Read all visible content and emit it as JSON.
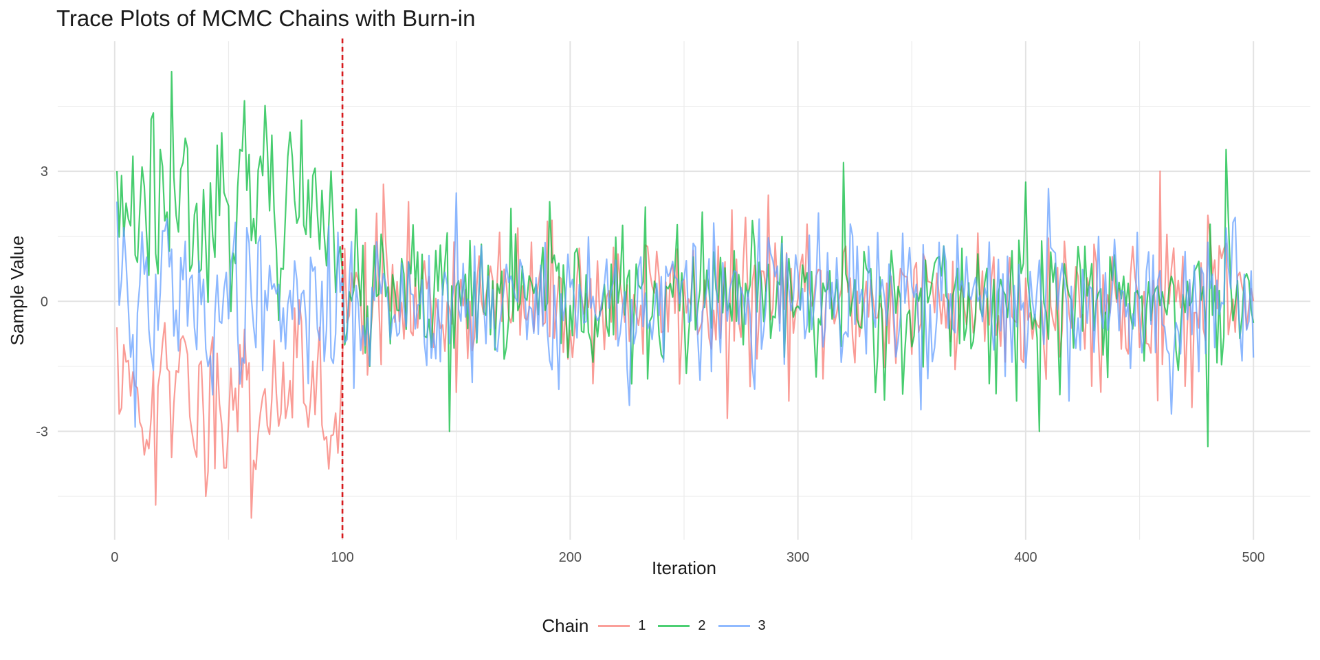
{
  "chart_data": {
    "type": "line",
    "title": "Trace Plots of MCMC Chains with Burn-in",
    "xlabel": "Iteration",
    "ylabel": "Sample Value",
    "xlim": [
      -25,
      525
    ],
    "ylim": [
      -5.5,
      6
    ],
    "x_ticks": [
      0,
      100,
      200,
      300,
      400,
      500
    ],
    "y_ticks": [
      -3,
      0,
      3
    ],
    "x_tick_labels": [
      "0",
      "100",
      "200",
      "300",
      "400",
      "500"
    ],
    "y_tick_labels": [
      "-3",
      "0",
      "3"
    ],
    "grid": true,
    "burn_in": {
      "x": 100,
      "color": "#d7191c",
      "style": "dashed"
    },
    "legend": {
      "title": "Chain",
      "position": "bottom"
    },
    "series": [
      {
        "name": "1",
        "color": "#F8766D",
        "summary": "iterations 1-100 centred near -2 (burn-in), iterations 101-500 centred near 0 with sd ~0.9",
        "keypoints": [
          [
            1,
            -0.6
          ],
          [
            2,
            -2.6
          ],
          [
            5,
            -1.4
          ],
          [
            10,
            -2.0
          ],
          [
            15,
            -3.4
          ],
          [
            18,
            -4.7
          ],
          [
            20,
            -1.6
          ],
          [
            25,
            -3.6
          ],
          [
            30,
            -0.8
          ],
          [
            35,
            -3.4
          ],
          [
            40,
            -4.5
          ],
          [
            45,
            -1.2
          ],
          [
            50,
            -2.8
          ],
          [
            55,
            -1.0
          ],
          [
            60,
            -5.0
          ],
          [
            65,
            -2.2
          ],
          [
            70,
            -0.9
          ],
          [
            75,
            -2.7
          ],
          [
            80,
            -1.3
          ],
          [
            85,
            -2.9
          ],
          [
            90,
            -0.6
          ],
          [
            95,
            -3.1
          ],
          [
            98,
            -3.5
          ],
          [
            100,
            -1.4
          ],
          [
            118,
            2.7
          ],
          [
            269,
            -2.7
          ],
          [
            287,
            2.45
          ],
          [
            459,
            3.0
          ],
          [
            473,
            -2.45
          ],
          [
            500,
            0.0
          ]
        ]
      },
      {
        "name": "2",
        "color": "#00BA38",
        "summary": "iterations 1-100 centred near +2.2 (burn-in), iterations 101-500 centred near 0 with sd ~0.9",
        "keypoints": [
          [
            1,
            3.0
          ],
          [
            3,
            2.9
          ],
          [
            6,
            1.9
          ],
          [
            10,
            0.9
          ],
          [
            12,
            3.1
          ],
          [
            15,
            0.6
          ],
          [
            16,
            4.2
          ],
          [
            18,
            1.1
          ],
          [
            20,
            3.5
          ],
          [
            25,
            5.3
          ],
          [
            28,
            1.6
          ],
          [
            30,
            3.2
          ],
          [
            35,
            2.0
          ],
          [
            40,
            1.3
          ],
          [
            45,
            3.6
          ],
          [
            50,
            2.2
          ],
          [
            55,
            3.5
          ],
          [
            60,
            1.4
          ],
          [
            65,
            2.9
          ],
          [
            70,
            2.1
          ],
          [
            77,
            3.9
          ],
          [
            80,
            1.8
          ],
          [
            85,
            2.8
          ],
          [
            90,
            1.2
          ],
          [
            95,
            3.0
          ],
          [
            100,
            0.7
          ],
          [
            147,
            -3.0
          ],
          [
            320,
            3.2
          ],
          [
            400,
            2.75
          ],
          [
            406,
            -3.0
          ],
          [
            480,
            -3.35
          ],
          [
            488,
            3.5
          ],
          [
            500,
            -0.5
          ]
        ]
      },
      {
        "name": "3",
        "color": "#619CFF",
        "summary": "iterations 1-100 centred near 0 with slow mixing, iterations 101-500 centred near 0 with sd ~0.9",
        "keypoints": [
          [
            1,
            2.3
          ],
          [
            3,
            0.5
          ],
          [
            5,
            0.9
          ],
          [
            9,
            -2.9
          ],
          [
            12,
            1.6
          ],
          [
            16,
            -1.2
          ],
          [
            20,
            0.2
          ],
          [
            23,
            1.9
          ],
          [
            26,
            -0.8
          ],
          [
            30,
            0.5
          ],
          [
            35,
            -0.6
          ],
          [
            40,
            -1.1
          ],
          [
            45,
            0.6
          ],
          [
            50,
            -0.4
          ],
          [
            58,
            1.7
          ],
          [
            60,
            0.1
          ],
          [
            65,
            -1.6
          ],
          [
            70,
            0.4
          ],
          [
            75,
            -1.1
          ],
          [
            80,
            0.5
          ],
          [
            85,
            -1.9
          ],
          [
            90,
            -0.9
          ],
          [
            95,
            -1.3
          ],
          [
            100,
            0.6
          ],
          [
            150,
            2.5
          ],
          [
            226,
            -2.4
          ],
          [
            354,
            -2.5
          ],
          [
            410,
            2.6
          ],
          [
            464,
            -2.6
          ],
          [
            500,
            -1.3
          ]
        ]
      }
    ]
  }
}
